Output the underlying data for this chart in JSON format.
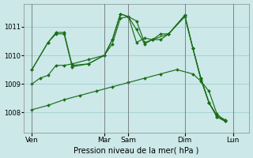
{
  "background_color": "#cce8e8",
  "line_color": "#1a6e1a",
  "grid_color": "#99cccc",
  "xlabel": "Pression niveau de la mer( hPa )",
  "ylim": [
    1007.3,
    1011.8
  ],
  "yticks": [
    1008,
    1009,
    1010,
    1011
  ],
  "xlim": [
    0,
    14
  ],
  "day_tick_pos": [
    0.5,
    5.0,
    6.5,
    10.0,
    13.0
  ],
  "day_labels": [
    "Ven",
    "Mar",
    "Sam",
    "Dim",
    "Lun"
  ],
  "vline_pos": [
    0.5,
    5.0,
    6.5,
    10.0,
    13.0
  ],
  "series": [
    {
      "x": [
        0.5,
        1.5,
        2.0,
        2.5,
        3.0,
        4.0,
        5.0,
        5.5,
        6.0,
        6.5,
        7.0,
        7.5,
        8.0,
        8.5,
        9.0,
        10.0,
        10.5,
        11.0,
        11.5,
        12.0,
        12.5
      ],
      "y": [
        1009.5,
        1010.45,
        1010.8,
        1010.8,
        1009.65,
        1009.7,
        1010.0,
        1010.55,
        1011.45,
        1011.35,
        1011.2,
        1010.45,
        1010.55,
        1010.55,
        1010.75,
        1011.4,
        1010.25,
        1009.2,
        1008.35,
        1007.85,
        1007.7
      ]
    },
    {
      "x": [
        0.5,
        1.5,
        2.0,
        2.5,
        3.0,
        4.0,
        5.0,
        5.5,
        6.0,
        6.5,
        7.0,
        7.5,
        8.0,
        9.0,
        10.0,
        10.5,
        11.0,
        11.5,
        12.0,
        12.5
      ],
      "y": [
        1009.5,
        1010.45,
        1010.75,
        1010.75,
        1009.6,
        1009.7,
        1010.0,
        1010.55,
        1011.45,
        1011.35,
        1010.9,
        1010.4,
        1010.55,
        1010.75,
        1011.4,
        1010.25,
        1009.2,
        1008.35,
        1007.85,
        1007.7
      ]
    },
    {
      "x": [
        0.5,
        1.0,
        1.5,
        2.0,
        2.5,
        3.0,
        4.0,
        5.0,
        5.5,
        6.0,
        6.5,
        7.0,
        7.5,
        8.0,
        8.5,
        9.0,
        10.0,
        10.5,
        11.0,
        11.5,
        12.0,
        12.5
      ],
      "y": [
        1009.0,
        1009.2,
        1009.3,
        1009.65,
        1009.65,
        1009.7,
        1009.85,
        1010.0,
        1010.4,
        1011.3,
        1011.35,
        1010.45,
        1010.6,
        1010.55,
        1010.75,
        1010.75,
        1011.35,
        1010.25,
        1009.15,
        1008.35,
        1007.9,
        1007.75
      ]
    },
    {
      "x": [
        0.5,
        1.5,
        2.5,
        3.5,
        4.5,
        5.5,
        6.5,
        7.5,
        8.5,
        9.5,
        10.5,
        11.0,
        11.5,
        12.0,
        12.5
      ],
      "y": [
        1008.1,
        1008.25,
        1008.45,
        1008.6,
        1008.75,
        1008.9,
        1009.05,
        1009.2,
        1009.35,
        1009.5,
        1009.35,
        1009.1,
        1008.75,
        1007.95,
        1007.7
      ]
    }
  ],
  "figsize": [
    3.2,
    2.0
  ],
  "dpi": 100
}
